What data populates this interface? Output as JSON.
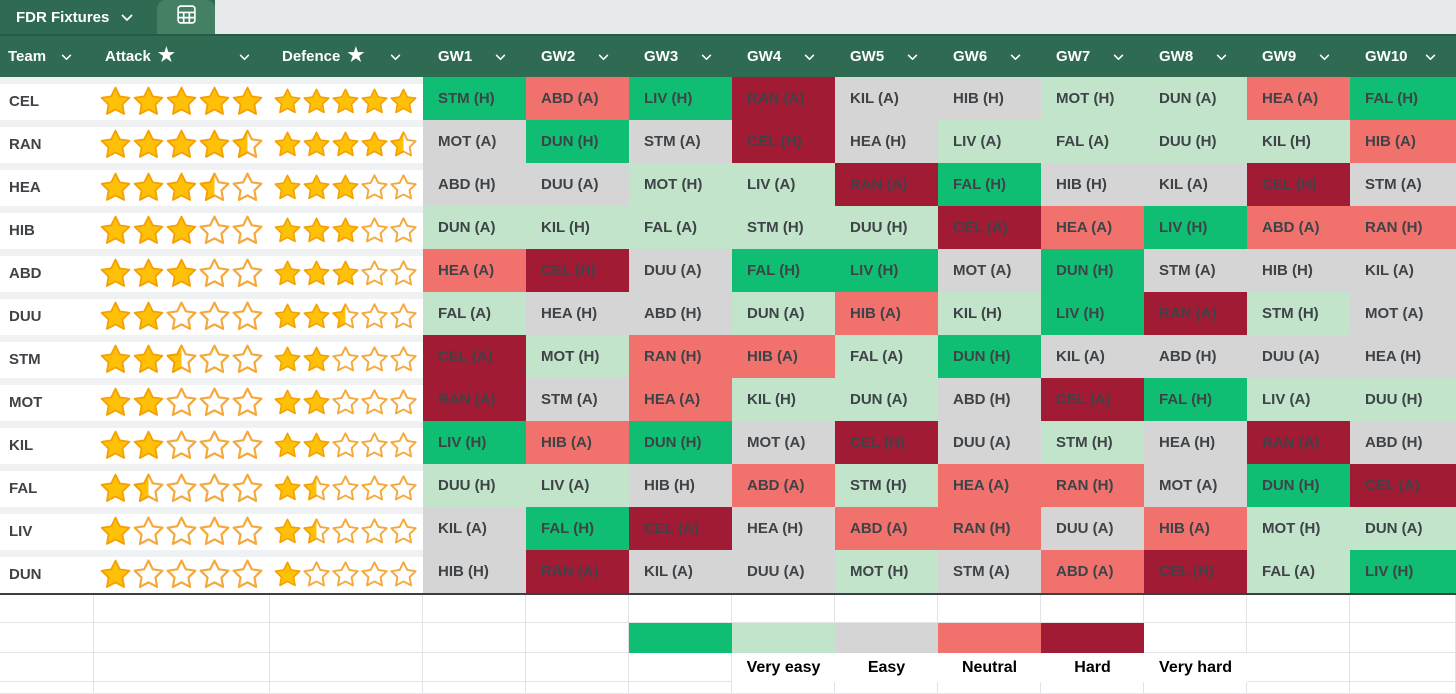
{
  "tab_bar": {
    "active_tab": "FDR Fixtures"
  },
  "header": {
    "team": "Team",
    "attack": "Attack",
    "defence": "Defence",
    "star_glyph": "★",
    "gameweeks": [
      "GW1",
      "GW2",
      "GW3",
      "GW4",
      "GW5",
      "GW6",
      "GW7",
      "GW8",
      "GW9",
      "GW10"
    ]
  },
  "colors": {
    "green_dark": "#2f6b52",
    "green_mid": "#438064",
    "gray_strip": "#e8e9ea",
    "very_easy": "#10be73",
    "easy": "#c1e4ca",
    "neutral": "#d5d5d5",
    "hard": "#f1716c",
    "very_hard": "#a11b35",
    "star_fill": "#ffc107",
    "star_outline": "#f5a93c",
    "star_filled_outline": "#f59f00"
  },
  "teams": [
    {
      "code": "CEL",
      "attack": 5,
      "defence": 5,
      "fixtures": [
        {
          "opponent": "STM",
          "venue": "H",
          "difficulty": "very_easy"
        },
        {
          "opponent": "ABD",
          "venue": "A",
          "difficulty": "hard"
        },
        {
          "opponent": "LIV",
          "venue": "H",
          "difficulty": "very_easy"
        },
        {
          "opponent": "RAN",
          "venue": "A",
          "difficulty": "very_hard"
        },
        {
          "opponent": "KIL",
          "venue": "A",
          "difficulty": "neutral"
        },
        {
          "opponent": "HIB",
          "venue": "H",
          "difficulty": "neutral"
        },
        {
          "opponent": "MOT",
          "venue": "H",
          "difficulty": "easy"
        },
        {
          "opponent": "DUN",
          "venue": "A",
          "difficulty": "easy"
        },
        {
          "opponent": "HEA",
          "venue": "A",
          "difficulty": "hard"
        },
        {
          "opponent": "FAL",
          "venue": "H",
          "difficulty": "very_easy"
        }
      ]
    },
    {
      "code": "RAN",
      "attack": 4.5,
      "defence": 4.5,
      "fixtures": [
        {
          "opponent": "MOT",
          "venue": "A",
          "difficulty": "neutral"
        },
        {
          "opponent": "DUN",
          "venue": "H",
          "difficulty": "very_easy"
        },
        {
          "opponent": "STM",
          "venue": "A",
          "difficulty": "neutral"
        },
        {
          "opponent": "CEL",
          "venue": "H",
          "difficulty": "very_hard"
        },
        {
          "opponent": "HEA",
          "venue": "H",
          "difficulty": "neutral"
        },
        {
          "opponent": "LIV",
          "venue": "A",
          "difficulty": "easy"
        },
        {
          "opponent": "FAL",
          "venue": "A",
          "difficulty": "easy"
        },
        {
          "opponent": "DUU",
          "venue": "H",
          "difficulty": "easy"
        },
        {
          "opponent": "KIL",
          "venue": "H",
          "difficulty": "easy"
        },
        {
          "opponent": "HIB",
          "venue": "A",
          "difficulty": "hard"
        }
      ]
    },
    {
      "code": "HEA",
      "attack": 3.5,
      "defence": 3,
      "fixtures": [
        {
          "opponent": "ABD",
          "venue": "H",
          "difficulty": "neutral"
        },
        {
          "opponent": "DUU",
          "venue": "A",
          "difficulty": "neutral"
        },
        {
          "opponent": "MOT",
          "venue": "H",
          "difficulty": "easy"
        },
        {
          "opponent": "LIV",
          "venue": "A",
          "difficulty": "easy"
        },
        {
          "opponent": "RAN",
          "venue": "A",
          "difficulty": "very_hard"
        },
        {
          "opponent": "FAL",
          "venue": "H",
          "difficulty": "very_easy"
        },
        {
          "opponent": "HIB",
          "venue": "H",
          "difficulty": "neutral"
        },
        {
          "opponent": "KIL",
          "venue": "A",
          "difficulty": "neutral"
        },
        {
          "opponent": "CEL",
          "venue": "H",
          "difficulty": "very_hard"
        },
        {
          "opponent": "STM",
          "venue": "A",
          "difficulty": "neutral"
        }
      ]
    },
    {
      "code": "HIB",
      "attack": 3,
      "defence": 3,
      "fixtures": [
        {
          "opponent": "DUN",
          "venue": "A",
          "difficulty": "easy"
        },
        {
          "opponent": "KIL",
          "venue": "H",
          "difficulty": "easy"
        },
        {
          "opponent": "FAL",
          "venue": "A",
          "difficulty": "easy"
        },
        {
          "opponent": "STM",
          "venue": "H",
          "difficulty": "easy"
        },
        {
          "opponent": "DUU",
          "venue": "H",
          "difficulty": "easy"
        },
        {
          "opponent": "CEL",
          "venue": "A",
          "difficulty": "very_hard"
        },
        {
          "opponent": "HEA",
          "venue": "A",
          "difficulty": "hard"
        },
        {
          "opponent": "LIV",
          "venue": "H",
          "difficulty": "very_easy"
        },
        {
          "opponent": "ABD",
          "venue": "A",
          "difficulty": "hard"
        },
        {
          "opponent": "RAN",
          "venue": "H",
          "difficulty": "hard"
        }
      ]
    },
    {
      "code": "ABD",
      "attack": 3,
      "defence": 3,
      "fixtures": [
        {
          "opponent": "HEA",
          "venue": "A",
          "difficulty": "hard"
        },
        {
          "opponent": "CEL",
          "venue": "H",
          "difficulty": "very_hard"
        },
        {
          "opponent": "DUU",
          "venue": "A",
          "difficulty": "neutral"
        },
        {
          "opponent": "FAL",
          "venue": "H",
          "difficulty": "very_easy"
        },
        {
          "opponent": "LIV",
          "venue": "H",
          "difficulty": "very_easy"
        },
        {
          "opponent": "MOT",
          "venue": "A",
          "difficulty": "neutral"
        },
        {
          "opponent": "DUN",
          "venue": "H",
          "difficulty": "very_easy"
        },
        {
          "opponent": "STM",
          "venue": "A",
          "difficulty": "neutral"
        },
        {
          "opponent": "HIB",
          "venue": "H",
          "difficulty": "neutral"
        },
        {
          "opponent": "KIL",
          "venue": "A",
          "difficulty": "neutral"
        }
      ]
    },
    {
      "code": "DUU",
      "attack": 2,
      "defence": 2.5,
      "fixtures": [
        {
          "opponent": "FAL",
          "venue": "A",
          "difficulty": "easy"
        },
        {
          "opponent": "HEA",
          "venue": "H",
          "difficulty": "neutral"
        },
        {
          "opponent": "ABD",
          "venue": "H",
          "difficulty": "neutral"
        },
        {
          "opponent": "DUN",
          "venue": "A",
          "difficulty": "easy"
        },
        {
          "opponent": "HIB",
          "venue": "A",
          "difficulty": "hard"
        },
        {
          "opponent": "KIL",
          "venue": "H",
          "difficulty": "easy"
        },
        {
          "opponent": "LIV",
          "venue": "H",
          "difficulty": "very_easy"
        },
        {
          "opponent": "RAN",
          "venue": "A",
          "difficulty": "very_hard"
        },
        {
          "opponent": "STM",
          "venue": "H",
          "difficulty": "easy"
        },
        {
          "opponent": "MOT",
          "venue": "A",
          "difficulty": "neutral"
        }
      ]
    },
    {
      "code": "STM",
      "attack": 2.5,
      "defence": 2,
      "fixtures": [
        {
          "opponent": "CEL",
          "venue": "A",
          "difficulty": "very_hard"
        },
        {
          "opponent": "MOT",
          "venue": "H",
          "difficulty": "easy"
        },
        {
          "opponent": "RAN",
          "venue": "H",
          "difficulty": "hard"
        },
        {
          "opponent": "HIB",
          "venue": "A",
          "difficulty": "hard"
        },
        {
          "opponent": "FAL",
          "venue": "A",
          "difficulty": "easy"
        },
        {
          "opponent": "DUN",
          "venue": "H",
          "difficulty": "very_easy"
        },
        {
          "opponent": "KIL",
          "venue": "A",
          "difficulty": "neutral"
        },
        {
          "opponent": "ABD",
          "venue": "H",
          "difficulty": "neutral"
        },
        {
          "opponent": "DUU",
          "venue": "A",
          "difficulty": "neutral"
        },
        {
          "opponent": "HEA",
          "venue": "H",
          "difficulty": "neutral"
        }
      ]
    },
    {
      "code": "MOT",
      "attack": 2,
      "defence": 2,
      "fixtures": [
        {
          "opponent": "RAN",
          "venue": "A",
          "difficulty": "very_hard"
        },
        {
          "opponent": "STM",
          "venue": "A",
          "difficulty": "neutral"
        },
        {
          "opponent": "HEA",
          "venue": "A",
          "difficulty": "hard"
        },
        {
          "opponent": "KIL",
          "venue": "H",
          "difficulty": "easy"
        },
        {
          "opponent": "DUN",
          "venue": "A",
          "difficulty": "easy"
        },
        {
          "opponent": "ABD",
          "venue": "H",
          "difficulty": "neutral"
        },
        {
          "opponent": "CEL",
          "venue": "A",
          "difficulty": "very_hard"
        },
        {
          "opponent": "FAL",
          "venue": "H",
          "difficulty": "very_easy"
        },
        {
          "opponent": "LIV",
          "venue": "A",
          "difficulty": "easy"
        },
        {
          "opponent": "DUU",
          "venue": "H",
          "difficulty": "easy"
        }
      ]
    },
    {
      "code": "KIL",
      "attack": 2,
      "defence": 2,
      "fixtures": [
        {
          "opponent": "LIV",
          "venue": "H",
          "difficulty": "very_easy"
        },
        {
          "opponent": "HIB",
          "venue": "A",
          "difficulty": "hard"
        },
        {
          "opponent": "DUN",
          "venue": "H",
          "difficulty": "very_easy"
        },
        {
          "opponent": "MOT",
          "venue": "A",
          "difficulty": "neutral"
        },
        {
          "opponent": "CEL",
          "venue": "H",
          "difficulty": "very_hard"
        },
        {
          "opponent": "DUU",
          "venue": "A",
          "difficulty": "neutral"
        },
        {
          "opponent": "STM",
          "venue": "H",
          "difficulty": "easy"
        },
        {
          "opponent": "HEA",
          "venue": "H",
          "difficulty": "neutral"
        },
        {
          "opponent": "RAN",
          "venue": "A",
          "difficulty": "very_hard"
        },
        {
          "opponent": "ABD",
          "venue": "H",
          "difficulty": "neutral"
        }
      ]
    },
    {
      "code": "FAL",
      "attack": 1.5,
      "defence": 1.5,
      "fixtures": [
        {
          "opponent": "DUU",
          "venue": "H",
          "difficulty": "easy"
        },
        {
          "opponent": "LIV",
          "venue": "A",
          "difficulty": "easy"
        },
        {
          "opponent": "HIB",
          "venue": "H",
          "difficulty": "neutral"
        },
        {
          "opponent": "ABD",
          "venue": "A",
          "difficulty": "hard"
        },
        {
          "opponent": "STM",
          "venue": "H",
          "difficulty": "easy"
        },
        {
          "opponent": "HEA",
          "venue": "A",
          "difficulty": "hard"
        },
        {
          "opponent": "RAN",
          "venue": "H",
          "difficulty": "hard"
        },
        {
          "opponent": "MOT",
          "venue": "A",
          "difficulty": "neutral"
        },
        {
          "opponent": "DUN",
          "venue": "H",
          "difficulty": "very_easy"
        },
        {
          "opponent": "CEL",
          "venue": "A",
          "difficulty": "very_hard"
        }
      ]
    },
    {
      "code": "LIV",
      "attack": 1,
      "defence": 1.5,
      "fixtures": [
        {
          "opponent": "KIL",
          "venue": "A",
          "difficulty": "neutral"
        },
        {
          "opponent": "FAL",
          "venue": "H",
          "difficulty": "very_easy"
        },
        {
          "opponent": "CEL",
          "venue": "A",
          "difficulty": "very_hard"
        },
        {
          "opponent": "HEA",
          "venue": "H",
          "difficulty": "neutral"
        },
        {
          "opponent": "ABD",
          "venue": "A",
          "difficulty": "hard"
        },
        {
          "opponent": "RAN",
          "venue": "H",
          "difficulty": "hard"
        },
        {
          "opponent": "DUU",
          "venue": "A",
          "difficulty": "neutral"
        },
        {
          "opponent": "HIB",
          "venue": "A",
          "difficulty": "hard"
        },
        {
          "opponent": "MOT",
          "venue": "H",
          "difficulty": "easy"
        },
        {
          "opponent": "DUN",
          "venue": "A",
          "difficulty": "easy"
        }
      ]
    },
    {
      "code": "DUN",
      "attack": 1,
      "defence": 1,
      "fixtures": [
        {
          "opponent": "HIB",
          "venue": "H",
          "difficulty": "neutral"
        },
        {
          "opponent": "RAN",
          "venue": "A",
          "difficulty": "very_hard"
        },
        {
          "opponent": "KIL",
          "venue": "A",
          "difficulty": "neutral"
        },
        {
          "opponent": "DUU",
          "venue": "A",
          "difficulty": "neutral"
        },
        {
          "opponent": "MOT",
          "venue": "H",
          "difficulty": "easy"
        },
        {
          "opponent": "STM",
          "venue": "A",
          "difficulty": "neutral"
        },
        {
          "opponent": "ABD",
          "venue": "A",
          "difficulty": "hard"
        },
        {
          "opponent": "CEL",
          "venue": "H",
          "difficulty": "very_hard"
        },
        {
          "opponent": "FAL",
          "venue": "A",
          "difficulty": "easy"
        },
        {
          "opponent": "LIV",
          "venue": "H",
          "difficulty": "very_easy"
        }
      ]
    }
  ],
  "legend": {
    "items": [
      {
        "label": "Very easy",
        "key": "very_easy"
      },
      {
        "label": "Easy",
        "key": "easy"
      },
      {
        "label": "Neutral",
        "key": "neutral"
      },
      {
        "label": "Hard",
        "key": "hard"
      },
      {
        "label": "Very hard",
        "key": "very_hard"
      }
    ]
  }
}
